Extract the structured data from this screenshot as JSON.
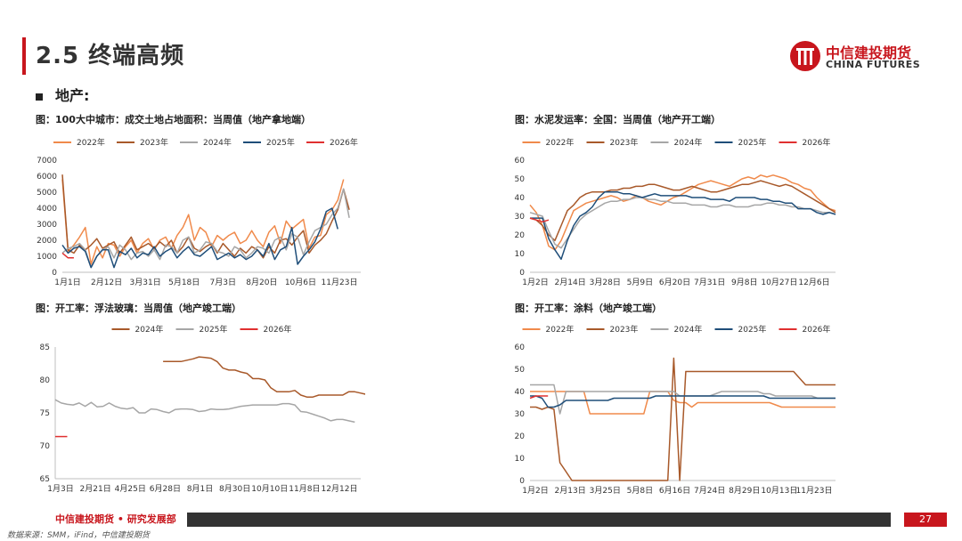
{
  "header": {
    "title": "2.5 终端高频",
    "section": "地产:"
  },
  "logo": {
    "cn": "中信建投期货",
    "en": "CHINA FUTURES"
  },
  "footer": {
    "org": "中信建投期货 • 研究发展部",
    "page": "27",
    "source": "数据来源：SMM，iFind，中信建投期货"
  },
  "colors": {
    "y2022": "#f08a4b",
    "y2023": "#a8592a",
    "y2024": "#a6a6a6",
    "y2025": "#1f4e79",
    "y2026": "#e03030",
    "accent": "#c8161d"
  },
  "chart_data": [
    {
      "id": "land",
      "type": "line",
      "title": "图：100大中城市：成交土地占地面积：当周值（地产拿地端）",
      "ylim": [
        0,
        7000
      ],
      "yticks": [
        0,
        1000,
        2000,
        3000,
        4000,
        5000,
        6000,
        7000
      ],
      "xlabels": [
        "1月1日",
        "2月12日",
        "3月31日",
        "5月18日",
        "7月3日",
        "8月20日",
        "10月6日",
        "11月23日"
      ],
      "npoints": 53,
      "series": [
        {
          "name": "2022年",
          "color": "#f08a4b",
          "values": [
            5800,
            1300,
            1700,
            2200,
            2800,
            500,
            1600,
            900,
            1800,
            1700,
            1000,
            1600,
            2000,
            1200,
            1800,
            2100,
            1400,
            2000,
            2200,
            1500,
            2300,
            2800,
            3600,
            2000,
            2800,
            2500,
            1600,
            2300,
            2000,
            2300,
            2500,
            1800,
            2000,
            2600,
            2000,
            1600,
            2500,
            2900,
            1800,
            3200,
            2700,
            3000,
            3300,
            1500,
            2200,
            2300,
            3600,
            3900,
            4500,
            5800
          ]
        },
        {
          "name": "2023年",
          "color": "#a8592a",
          "values": [
            6100,
            1400,
            1200,
            1700,
            1400,
            1700,
            2100,
            1500,
            1700,
            1900,
            1200,
            1700,
            2200,
            1400,
            1600,
            1800,
            1500,
            1900,
            1600,
            2000,
            1200,
            1600,
            2200,
            1500,
            1300,
            1600,
            1800,
            1200,
            1800,
            1400,
            1000,
            1500,
            1200,
            1600,
            1400,
            900,
            1600,
            1200,
            2000,
            2100,
            1700,
            2200,
            2600,
            1200,
            1700,
            2000,
            2400,
            3200,
            3900,
            5200,
            3900
          ]
        },
        {
          "name": "2024年",
          "color": "#a6a6a6",
          "values": [
            1200,
            1500,
            1600,
            1800,
            1400,
            300,
            1000,
            1400,
            1600,
            900,
            1700,
            1400,
            800,
            1200,
            1300,
            1000,
            1400,
            800,
            1700,
            1600,
            1200,
            2000,
            2200,
            1200,
            1400,
            1900,
            1800,
            1300,
            1200,
            1000,
            1600,
            1400,
            900,
            1200,
            1600,
            1500,
            1200,
            2000,
            2200,
            1400,
            2400,
            2200,
            1100,
            1900,
            2600,
            2800,
            3000,
            3600,
            4000,
            5200,
            3400
          ]
        },
        {
          "name": "2025年",
          "color": "#1f4e79",
          "values": [
            1700,
            1200,
            1500,
            1600,
            1300,
            300,
            1000,
            1400,
            1400,
            300,
            1300,
            1100,
            1500,
            900,
            1200,
            1100,
            1600,
            1000,
            1300,
            1500,
            900,
            1300,
            1600,
            1100,
            1000,
            1300,
            1600,
            800,
            1000,
            1200,
            900,
            1100,
            800,
            1000,
            1400,
            1000,
            1800,
            800,
            1400,
            1600,
            2800,
            500,
            1000,
            1400,
            1900,
            2700,
            3800,
            4000,
            2700
          ]
        },
        {
          "name": "2026年",
          "color": "#e03030",
          "values": [
            1200,
            900,
            900
          ]
        }
      ]
    },
    {
      "id": "cement",
      "type": "line",
      "title": "图：水泥发运率：全国：当周值（地产开工端）",
      "ylim": [
        0,
        60
      ],
      "yticks": [
        0,
        10,
        20,
        30,
        40,
        50,
        60
      ],
      "xlabels": [
        "1月2日",
        "2月14日",
        "3月28日",
        "5月9日",
        "6月20日",
        "7月31日",
        "9月8日",
        "10月27日",
        "12月6日"
      ],
      "npoints": 50,
      "series": [
        {
          "name": "2022年",
          "color": "#f08a4b",
          "values": [
            36,
            32,
            25,
            14,
            12,
            17,
            25,
            33,
            35,
            37,
            38,
            39,
            40,
            41,
            40,
            38,
            39,
            41,
            40,
            38,
            37,
            36,
            38,
            40,
            41,
            43,
            45,
            47,
            48,
            49,
            48,
            47,
            46,
            48,
            50,
            51,
            50,
            52,
            51,
            52,
            51,
            50,
            48,
            47,
            45,
            44,
            40,
            37,
            34,
            33
          ]
        },
        {
          "name": "2023年",
          "color": "#a8592a",
          "values": [
            29,
            28,
            25,
            20,
            17,
            25,
            33,
            36,
            40,
            42,
            43,
            43,
            43,
            44,
            44,
            45,
            45,
            46,
            46,
            47,
            47,
            46,
            45,
            44,
            44,
            45,
            46,
            45,
            44,
            43,
            43,
            44,
            45,
            46,
            47,
            47,
            48,
            49,
            48,
            47,
            46,
            47,
            46,
            44,
            42,
            40,
            38,
            36,
            34,
            32
          ]
        },
        {
          "name": "2024年",
          "color": "#a6a6a6",
          "values": [
            32,
            31,
            30,
            22,
            15,
            13,
            18,
            23,
            28,
            31,
            33,
            35,
            37,
            38,
            38,
            39,
            39,
            40,
            40,
            39,
            39,
            38,
            38,
            37,
            37,
            37,
            36,
            36,
            36,
            35,
            35,
            36,
            36,
            35,
            35,
            35,
            36,
            36,
            37,
            37,
            36,
            36,
            35,
            35,
            34,
            34,
            33,
            32,
            32,
            31
          ]
        },
        {
          "name": "2025年",
          "color": "#1f4e79",
          "values": [
            29,
            29,
            29,
            18,
            12,
            7,
            17,
            25,
            30,
            32,
            35,
            40,
            43,
            43,
            43,
            42,
            42,
            41,
            40,
            41,
            42,
            41,
            41,
            41,
            41,
            41,
            40,
            40,
            40,
            39,
            39,
            39,
            38,
            40,
            40,
            40,
            40,
            39,
            39,
            38,
            38,
            37,
            37,
            34,
            34,
            34,
            32,
            31,
            32,
            31
          ]
        },
        {
          "name": "2026年",
          "color": "#e03030",
          "values": [
            29,
            28,
            27,
            28
          ]
        }
      ]
    },
    {
      "id": "glass",
      "type": "line",
      "title": "图：开工率：浮法玻璃：当周值（地产竣工端）",
      "ylim": [
        65,
        85
      ],
      "yticks": [
        65,
        70,
        75,
        80,
        85
      ],
      "xlabels": [
        "1月3日",
        "2月21日",
        "4月25日",
        "6月28日",
        "8月1日",
        "8月30日",
        "10月10日",
        "11月8日",
        "12月12日"
      ],
      "npoints": 52,
      "series": [
        {
          "name": "2024年",
          "color": "#a8592a",
          "start": 18,
          "values": [
            82.8,
            82.8,
            82.8,
            82.8,
            83.0,
            83.2,
            83.5,
            83.4,
            83.3,
            82.8,
            81.8,
            81.5,
            81.5,
            81.2,
            81.0,
            80.2,
            80.2,
            80.0,
            78.8,
            78.2,
            78.2,
            78.2,
            78.4,
            77.7,
            77.4,
            77.4,
            77.7,
            77.7,
            77.7,
            77.7,
            77.7,
            78.2,
            78.2,
            78.0,
            77.8
          ]
        },
        {
          "name": "2025年",
          "color": "#a6a6a6",
          "start": 0,
          "values": [
            77.0,
            76.5,
            76.3,
            76.2,
            76.5,
            76.0,
            76.6,
            75.9,
            76.0,
            76.5,
            76.0,
            75.7,
            75.6,
            75.8,
            75.0,
            75.0,
            75.6,
            75.5,
            75.2,
            75.0,
            75.5,
            75.6,
            75.6,
            75.5,
            75.2,
            75.3,
            75.6,
            75.5,
            75.5,
            75.6,
            75.8,
            76.0,
            76.1,
            76.2,
            76.2,
            76.2,
            76.2,
            76.2,
            76.4,
            76.4,
            76.2,
            75.2,
            75.1,
            74.8,
            74.5,
            74.2,
            73.8,
            74.0,
            74.0,
            73.8,
            73.6
          ]
        },
        {
          "name": "2026年",
          "color": "#e03030",
          "start": 0,
          "values": [
            71.4,
            71.4,
            71.4
          ]
        }
      ]
    },
    {
      "id": "paint",
      "type": "line",
      "title": "图：开工率：涂料（地产竣工端）",
      "ylim": [
        0,
        60
      ],
      "yticks": [
        0,
        10,
        20,
        30,
        40,
        50,
        60
      ],
      "xlabels": [
        "1月2日",
        "2月13日",
        "3月25日",
        "5月8日",
        "6月16日",
        "7月24日",
        "8月29日",
        "10月13日",
        "11月23日"
      ],
      "npoints": 52,
      "series": [
        {
          "name": "2022年",
          "color": "#f08a4b",
          "values": [
            40,
            40,
            40,
            40,
            40,
            40,
            40,
            40,
            40,
            40,
            30,
            30,
            30,
            30,
            30,
            30,
            30,
            30,
            30,
            30,
            40,
            40,
            40,
            40,
            36,
            35,
            35,
            33,
            35,
            35,
            35,
            35,
            35,
            35,
            35,
            35,
            35,
            35,
            35,
            35,
            35,
            34,
            33,
            33,
            33,
            33,
            33,
            33,
            33,
            33,
            33,
            33
          ]
        },
        {
          "name": "2023年",
          "color": "#a8592a",
          "values": [
            33,
            33,
            32,
            33,
            32,
            8,
            4,
            0,
            0,
            0,
            0,
            0,
            0,
            0,
            0,
            0,
            0,
            0,
            0,
            0,
            0,
            0,
            0,
            0,
            55,
            0,
            49,
            49,
            49,
            49,
            49,
            49,
            49,
            49,
            49,
            49,
            49,
            49,
            49,
            49,
            49,
            49,
            49,
            49,
            49,
            46,
            43,
            43,
            43,
            43,
            43,
            43
          ]
        },
        {
          "name": "2024年",
          "color": "#a6a6a6",
          "values": [
            43,
            43,
            43,
            43,
            43,
            30,
            40,
            40,
            40,
            40,
            40,
            40,
            40,
            40,
            40,
            40,
            40,
            40,
            40,
            40,
            40,
            40,
            40,
            40,
            40,
            38,
            38,
            38,
            38,
            38,
            38,
            39,
            40,
            40,
            40,
            40,
            40,
            40,
            40,
            39,
            39,
            38,
            38,
            38,
            38,
            38,
            38,
            38,
            37,
            37,
            37,
            37
          ]
        },
        {
          "name": "2025年",
          "color": "#1f4e79",
          "values": [
            38,
            38,
            37,
            33,
            33,
            34,
            36,
            36,
            36,
            36,
            36,
            36,
            36,
            36,
            37,
            37,
            37,
            37,
            37,
            37,
            37,
            38,
            38,
            38,
            38,
            38,
            38,
            38,
            38,
            38,
            38,
            38,
            38,
            38,
            38,
            38,
            38,
            38,
            38,
            38,
            37,
            37,
            37,
            37,
            37,
            37,
            37,
            37,
            37,
            37,
            37,
            37
          ]
        },
        {
          "name": "2026年",
          "color": "#e03030",
          "values": [
            37,
            38,
            38,
            38
          ]
        }
      ]
    }
  ]
}
